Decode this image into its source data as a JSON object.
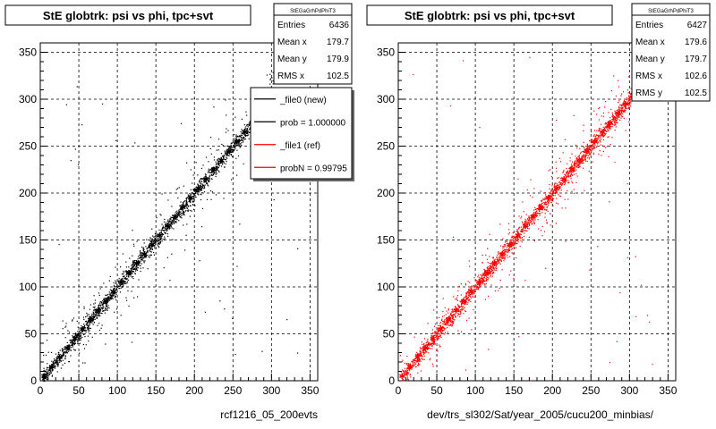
{
  "chart_data": [
    {
      "type": "scatter",
      "title": "StE globtrk: psi vs phi, tpc+svt",
      "xlabel": "rcf1216_05_200evts",
      "ylabel": "",
      "xlim": [
        0,
        360
      ],
      "ylim": [
        0,
        360
      ],
      "xticks": [
        0,
        50,
        100,
        150,
        200,
        250,
        300,
        350
      ],
      "yticks": [
        0,
        50,
        100,
        150,
        200,
        250,
        300,
        350
      ],
      "grid": true,
      "marker_color": "#000000",
      "correlation": "y = x (psi tracks phi)",
      "stats": {
        "title": "StEGaGrhPdPhiT3",
        "rows": [
          {
            "label": "Entries",
            "value": "6436"
          },
          {
            "label": "Mean x",
            "value": "179.7"
          },
          {
            "label": "Mean y",
            "value": "179.9"
          },
          {
            "label": "RMS x",
            "value": "102.5"
          }
        ]
      },
      "legend": {
        "placement": "top-right",
        "entries": [
          {
            "label": "_file0 (new)",
            "color": "#000000"
          },
          {
            "label": "prob = 1.000000",
            "color": "#000000"
          },
          {
            "label": "_file1 (ref)",
            "color": "#ff0000"
          },
          {
            "label": "probN = 0.99795",
            "color": "#ff0000"
          }
        ]
      }
    },
    {
      "type": "scatter",
      "title": "StE globtrk: psi vs phi, tpc+svt",
      "xlabel": "dev/trs_sl302/Sat/year_2005/cucu200_minbias/",
      "ylabel": "",
      "xlim": [
        0,
        360
      ],
      "ylim": [
        0,
        360
      ],
      "xticks": [
        0,
        50,
        100,
        150,
        200,
        250,
        300,
        350
      ],
      "yticks": [
        0,
        50,
        100,
        150,
        200,
        250,
        300,
        350
      ],
      "grid": true,
      "marker_color": "#ff0000",
      "correlation": "y = x (psi tracks phi)",
      "stats": {
        "title": "StEGaGrhPdPhiT3",
        "rows": [
          {
            "label": "Entries",
            "value": "6427"
          },
          {
            "label": "Mean x",
            "value": "179.6"
          },
          {
            "label": "Mean y",
            "value": "179.7"
          },
          {
            "label": "RMS x",
            "value": "102.6"
          },
          {
            "label": "RMS y",
            "value": "102.5"
          }
        ]
      }
    }
  ]
}
